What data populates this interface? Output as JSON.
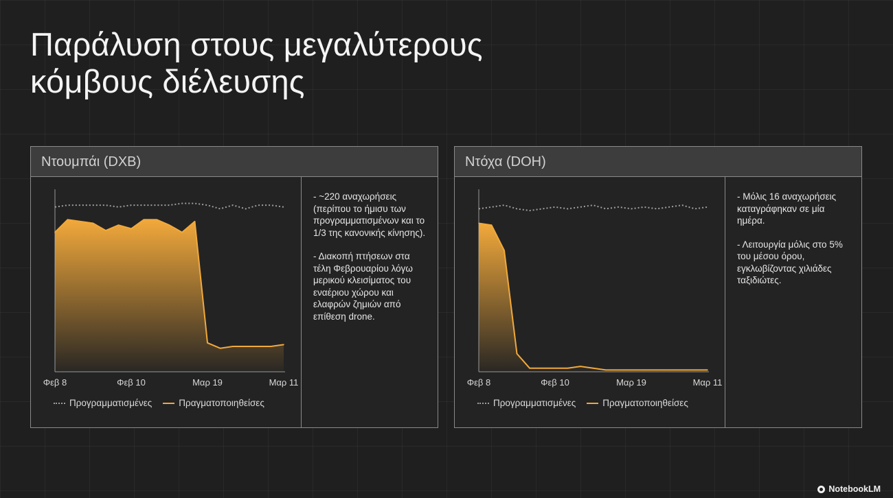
{
  "title_lines": [
    "Παράλυση στους μεγαλύτερους",
    "κόμβους διέλευσης"
  ],
  "brand": "NotebookLM",
  "colors": {
    "actual": "#f2a93b",
    "scheduled": "#a0a0a0",
    "panel_header": "#3d3d3d",
    "background": "#1f1f1f"
  },
  "panels": [
    {
      "header": "Ντουμπάι (DXB)",
      "notes": [
        "- ~220 αναχωρήσεις (περίπου το ήμισυ των προγραμματισμένων και το 1/3 της κανονικής κίνησης).",
        "- Διακοπή πτήσεων στα τέλη Φεβρουαρίου λόγω μερικού κλεισίματος του εναέριου χώρου και ελαφρών ζημιών από επίθεση drone."
      ],
      "legend": [
        "Προγραμματισμένες",
        "Πραγματοποιηθείσες"
      ]
    },
    {
      "header": "Ντόχα (DOH)",
      "notes": [
        "- Μόλις 16 αναχωρήσεις καταγράφηκαν σε μία ημέρα.",
        "- Λειτουργία μόλις στο 5% του μέσου όρου, εγκλωβίζοντας χιλιάδες ταξιδιώτες."
      ],
      "legend": [
        "Προγραμματισμένες",
        "Πραγματοποιηθείσες"
      ]
    }
  ],
  "chart_data": [
    {
      "type": "area",
      "title": "Ντουμπάι (DXB)",
      "x_tick_labels": [
        "Φεβ 8",
        "Φεβ 10",
        "Μαρ 19",
        "Μαρ 11"
      ],
      "x_index": [
        0,
        1,
        2,
        3,
        4,
        5,
        6,
        7,
        8,
        9,
        10,
        11,
        12,
        13,
        14,
        15,
        16,
        17,
        18
      ],
      "tick_positions": [
        0,
        6,
        12,
        18
      ],
      "ylim": [
        0,
        100
      ],
      "grid": false,
      "legend_position": "bottom",
      "series": [
        {
          "name": "Προγραμματισμένες",
          "style": "dotted",
          "values": [
            91,
            92,
            92,
            92,
            92,
            91,
            92,
            92,
            92,
            92,
            93,
            93,
            92,
            90,
            92,
            90,
            92,
            92,
            91
          ]
        },
        {
          "name": "Πραγματοποιηθείσες",
          "style": "area",
          "values": [
            77,
            84,
            83,
            82,
            78,
            81,
            79,
            84,
            84,
            81,
            77,
            83,
            16,
            13,
            14,
            14,
            14,
            14,
            15
          ]
        }
      ]
    },
    {
      "type": "area",
      "title": "Ντόχα (DOH)",
      "x_tick_labels": [
        "Φεβ 8",
        "Φεβ 10",
        "Μαρ 19",
        "Μαρ 11"
      ],
      "x_index": [
        0,
        1,
        2,
        3,
        4,
        5,
        6,
        7,
        8,
        9,
        10,
        11,
        12,
        13,
        14,
        15,
        16,
        17,
        18
      ],
      "tick_positions": [
        0,
        6,
        12,
        18
      ],
      "ylim": [
        0,
        100
      ],
      "grid": false,
      "legend_position": "bottom",
      "series": [
        {
          "name": "Προγραμματισμένες",
          "style": "dotted",
          "values": [
            90,
            91,
            92,
            90,
            89,
            90,
            91,
            90,
            91,
            92,
            90,
            91,
            90,
            91,
            90,
            91,
            92,
            90,
            91
          ]
        },
        {
          "name": "Πραγματοποιηθείσες",
          "style": "area",
          "values": [
            82,
            81,
            67,
            10,
            2,
            2,
            2,
            2,
            3,
            2,
            1,
            1,
            1,
            1,
            1,
            1,
            1,
            1,
            1
          ]
        }
      ]
    }
  ]
}
